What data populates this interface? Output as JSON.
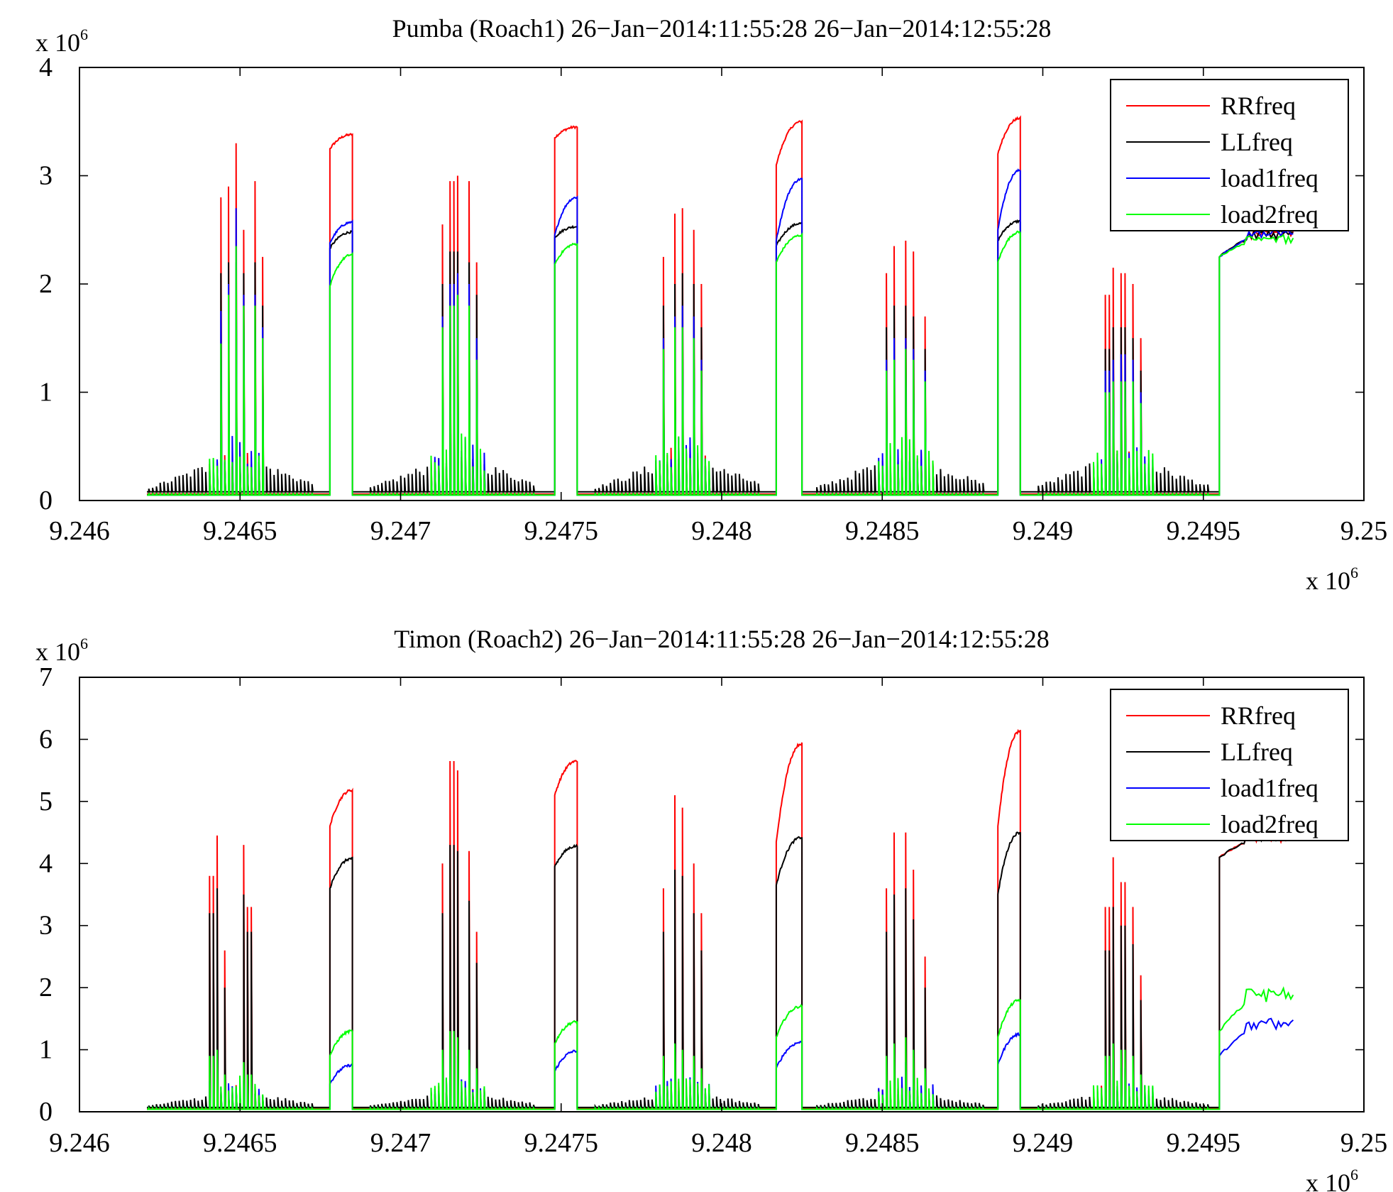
{
  "chart_data": [
    {
      "type": "line",
      "title": "Pumba (Roach1) 26−Jan−2014:11:55:28 26−Jan−2014:12:55:28",
      "xlim": [
        9246000.0,
        9250000.0
      ],
      "ylim": [
        0,
        4000000.0
      ],
      "x_exponent_label": "x 10",
      "y_exponent_label": "x 10",
      "exponent": "6",
      "x_tick_values": [
        9.246,
        9.2465,
        9.247,
        9.2475,
        9.248,
        9.2485,
        9.249,
        9.2495,
        9.25
      ],
      "x_tick_labels": [
        "9.246",
        "9.2465",
        "9.247",
        "9.2475",
        "9.248",
        "9.2485",
        "9.249",
        "9.2495",
        "9.25"
      ],
      "y_tick_values": [
        0,
        1,
        2,
        3,
        4
      ],
      "y_tick_labels": [
        "0",
        "1",
        "2",
        "3",
        "4"
      ],
      "legend": {
        "placement": "top-right",
        "entries": [
          "RRfreq",
          "LLfreq",
          "load1freq",
          "load2freq"
        ]
      },
      "grid": false,
      "series": [
        {
          "name": "RRfreq",
          "color": "#ff0000"
        },
        {
          "name": "LLfreq",
          "color": "#000000"
        },
        {
          "name": "load1freq",
          "color": "#0000ff"
        },
        {
          "name": "load2freq",
          "color": "#00ff00"
        }
      ],
      "baseline": {
        "LLfreq": 0.08,
        "RRfreq": 0.06,
        "load1freq": 0.05,
        "load2freq": 0.05
      },
      "plateaus": [
        {
          "x_start": 9.24678,
          "x_end": 9.24685,
          "RRfreq": [
            3.25,
            3.38
          ],
          "LLfreq": [
            2.33,
            2.48
          ],
          "load1freq": [
            2.38,
            2.57
          ],
          "load2freq": [
            1.98,
            2.27
          ]
        },
        {
          "x_start": 9.24748,
          "x_end": 9.24755,
          "RRfreq": [
            3.35,
            3.45
          ],
          "LLfreq": [
            2.43,
            2.53
          ],
          "load1freq": [
            2.45,
            2.8
          ],
          "load2freq": [
            2.18,
            2.37
          ]
        },
        {
          "x_start": 9.24817,
          "x_end": 9.24825,
          "RRfreq": [
            3.1,
            3.5
          ],
          "LLfreq": [
            2.35,
            2.56
          ],
          "load1freq": [
            2.4,
            2.97
          ],
          "load2freq": [
            2.2,
            2.45
          ]
        },
        {
          "x_start": 9.24886,
          "x_end": 9.24893,
          "RRfreq": [
            3.2,
            3.53
          ],
          "LLfreq": [
            2.4,
            2.58
          ],
          "load1freq": [
            2.5,
            3.05
          ],
          "load2freq": [
            2.2,
            2.48
          ]
        },
        {
          "x_start": 9.24955,
          "x_end": 9.24978,
          "RRfreq": [
            2.25,
            2.5
          ],
          "LLfreq": [
            2.25,
            2.5
          ],
          "load1freq": [
            2.25,
            2.5
          ],
          "load2freq": [
            2.25,
            2.45
          ]
        }
      ],
      "spike_clusters": [
        {
          "center": 9.24649,
          "x_start": 9.24621,
          "x_end": 9.24673,
          "peaks": [
            {
              "x": 9.24644,
              "RRfreq": 2.8,
              "LLfreq": 2.1,
              "load1freq": 1.75,
              "load2freq": 1.45
            },
            {
              "x": 9.24646,
              "RRfreq": 2.9,
              "LLfreq": 2.2,
              "load1freq": 2.0,
              "load2freq": 1.9
            },
            {
              "x": 9.24649,
              "RRfreq": 3.3,
              "LLfreq": 2.2,
              "load1freq": 2.7,
              "load2freq": 2.35
            },
            {
              "x": 9.24651,
              "RRfreq": 2.5,
              "LLfreq": 2.1,
              "load1freq": 1.9,
              "load2freq": 1.8
            },
            {
              "x": 9.24655,
              "RRfreq": 2.95,
              "LLfreq": 2.2,
              "load1freq": 1.9,
              "load2freq": 1.8
            },
            {
              "x": 9.24657,
              "RRfreq": 2.25,
              "LLfreq": 1.8,
              "load1freq": 1.6,
              "load2freq": 1.5
            }
          ]
        },
        {
          "center": 9.24718,
          "x_start": 9.2469,
          "x_end": 9.24742,
          "peaks": [
            {
              "x": 9.24713,
              "RRfreq": 2.55,
              "LLfreq": 2.0,
              "load1freq": 1.7,
              "load2freq": 1.6
            },
            {
              "x": 9.24716,
              "RRfreq": 2.95,
              "LLfreq": 2.3,
              "load1freq": 2.0,
              "load2freq": 1.8
            },
            {
              "x": 9.24718,
              "RRfreq": 3.0,
              "LLfreq": 2.3,
              "load1freq": 2.1,
              "load2freq": 1.9
            },
            {
              "x": 9.24721,
              "RRfreq": 2.95,
              "LLfreq": 2.2,
              "load1freq": 2.0,
              "load2freq": 1.8
            },
            {
              "x": 9.24724,
              "RRfreq": 2.2,
              "LLfreq": 1.9,
              "load1freq": 1.5,
              "load2freq": 1.3
            }
          ]
        },
        {
          "center": 9.24788,
          "x_start": 9.2476,
          "x_end": 9.24812,
          "peaks": [
            {
              "x": 9.24782,
              "RRfreq": 2.25,
              "LLfreq": 1.8,
              "load1freq": 1.5,
              "load2freq": 1.4
            },
            {
              "x": 9.24785,
              "RRfreq": 2.65,
              "LLfreq": 2.0,
              "load1freq": 1.7,
              "load2freq": 1.6
            },
            {
              "x": 9.24788,
              "RRfreq": 2.7,
              "LLfreq": 2.1,
              "load1freq": 1.8,
              "load2freq": 1.6
            },
            {
              "x": 9.24791,
              "RRfreq": 2.5,
              "LLfreq": 2.0,
              "load1freq": 1.7,
              "load2freq": 1.5
            },
            {
              "x": 9.24794,
              "RRfreq": 2.0,
              "LLfreq": 1.6,
              "load1freq": 1.3,
              "load2freq": 1.2
            }
          ]
        },
        {
          "center": 9.24857,
          "x_start": 9.24829,
          "x_end": 9.24882,
          "peaks": [
            {
              "x": 9.24851,
              "RRfreq": 2.1,
              "LLfreq": 1.6,
              "load1freq": 1.3,
              "load2freq": 1.2
            },
            {
              "x": 9.24854,
              "RRfreq": 2.35,
              "LLfreq": 1.8,
              "load1freq": 1.5,
              "load2freq": 1.3
            },
            {
              "x": 9.24857,
              "RRfreq": 2.4,
              "LLfreq": 1.8,
              "load1freq": 1.5,
              "load2freq": 1.4
            },
            {
              "x": 9.2486,
              "RRfreq": 2.3,
              "LLfreq": 1.7,
              "load1freq": 1.4,
              "load2freq": 1.3
            },
            {
              "x": 9.24863,
              "RRfreq": 1.7,
              "LLfreq": 1.4,
              "load1freq": 1.2,
              "load2freq": 1.1
            }
          ]
        },
        {
          "center": 9.24925,
          "x_start": 9.24898,
          "x_end": 9.24952,
          "peaks": [
            {
              "x": 9.2492,
              "RRfreq": 1.9,
              "LLfreq": 1.4,
              "load1freq": 1.2,
              "load2freq": 1.0
            },
            {
              "x": 9.24922,
              "RRfreq": 2.15,
              "LLfreq": 1.6,
              "load1freq": 1.3,
              "load2freq": 1.1
            },
            {
              "x": 9.24925,
              "RRfreq": 2.1,
              "LLfreq": 1.6,
              "load1freq": 1.35,
              "load2freq": 1.1
            },
            {
              "x": 9.24928,
              "RRfreq": 2.0,
              "LLfreq": 1.5,
              "load1freq": 1.3,
              "load2freq": 1.1
            },
            {
              "x": 9.24931,
              "RRfreq": 1.5,
              "LLfreq": 1.2,
              "load1freq": 1.0,
              "load2freq": 0.9
            }
          ]
        }
      ]
    },
    {
      "type": "line",
      "title": "Timon (Roach2) 26−Jan−2014:11:55:28 26−Jan−2014:12:55:28",
      "xlim": [
        9246000.0,
        9250000.0
      ],
      "ylim": [
        0,
        7000000.0
      ],
      "x_exponent_label": "x 10",
      "y_exponent_label": "x 10",
      "exponent": "6",
      "x_tick_values": [
        9.246,
        9.2465,
        9.247,
        9.2475,
        9.248,
        9.2485,
        9.249,
        9.2495,
        9.25
      ],
      "x_tick_labels": [
        "9.246",
        "9.2465",
        "9.247",
        "9.2475",
        "9.248",
        "9.2485",
        "9.249",
        "9.2495",
        "9.25"
      ],
      "y_tick_values": [
        0,
        1,
        2,
        3,
        4,
        5,
        6,
        7
      ],
      "y_tick_labels": [
        "0",
        "1",
        "2",
        "3",
        "4",
        "5",
        "6",
        "7"
      ],
      "legend": {
        "placement": "top-right",
        "entries": [
          "RRfreq",
          "LLfreq",
          "load1freq",
          "load2freq"
        ]
      },
      "grid": false,
      "series": [
        {
          "name": "RRfreq",
          "color": "#ff0000"
        },
        {
          "name": "LLfreq",
          "color": "#000000"
        },
        {
          "name": "load1freq",
          "color": "#0000ff"
        },
        {
          "name": "load2freq",
          "color": "#00ff00"
        }
      ],
      "baseline": {
        "LLfreq": 0.07,
        "RRfreq": 0.05,
        "load1freq": 0.04,
        "load2freq": 0.04
      },
      "plateaus": [
        {
          "x_start": 9.24678,
          "x_end": 9.24685,
          "RRfreq": [
            4.6,
            5.18
          ],
          "LLfreq": [
            3.6,
            4.08
          ],
          "load1freq": [
            0.45,
            0.75
          ],
          "load2freq": [
            0.9,
            1.3
          ]
        },
        {
          "x_start": 9.24748,
          "x_end": 9.24755,
          "RRfreq": [
            5.1,
            5.65
          ],
          "LLfreq": [
            3.95,
            4.28
          ],
          "load1freq": [
            0.65,
            0.98
          ],
          "load2freq": [
            1.1,
            1.45
          ]
        },
        {
          "x_start": 9.24817,
          "x_end": 9.24825,
          "RRfreq": [
            4.35,
            5.93
          ],
          "LLfreq": [
            3.65,
            4.42
          ],
          "load1freq": [
            0.7,
            1.12
          ],
          "load2freq": [
            1.2,
            1.7
          ]
        },
        {
          "x_start": 9.24886,
          "x_end": 9.24893,
          "RRfreq": [
            4.6,
            6.13
          ],
          "LLfreq": [
            3.5,
            4.5
          ],
          "load1freq": [
            0.75,
            1.25
          ],
          "load2freq": [
            1.2,
            1.8
          ]
        },
        {
          "x_start": 9.24955,
          "x_end": 9.24978,
          "RRfreq": [
            4.1,
            4.5
          ],
          "LLfreq": [
            4.1,
            4.5
          ],
          "load1freq": [
            0.9,
            1.5
          ],
          "load2freq": [
            1.3,
            2.0
          ]
        }
      ],
      "spike_clusters": [
        {
          "center": 9.24649,
          "x_start": 9.24621,
          "x_end": 9.24673,
          "peaks": [
            {
              "x": 9.24641,
              "RRfreq": 3.8,
              "LLfreq": 3.2,
              "load1freq": 0.5,
              "load2freq": 0.9
            },
            {
              "x": 9.24643,
              "RRfreq": 4.45,
              "LLfreq": 3.6,
              "load1freq": 0.6,
              "load2freq": 1.0
            },
            {
              "x": 9.24645,
              "RRfreq": 2.6,
              "LLfreq": 2.0,
              "load1freq": 0.3,
              "load2freq": 0.6
            },
            {
              "x": 9.24651,
              "RRfreq": 4.3,
              "LLfreq": 3.5,
              "load1freq": 0.5,
              "load2freq": 0.8
            },
            {
              "x": 9.24653,
              "RRfreq": 3.3,
              "LLfreq": 2.9,
              "load1freq": 0.4,
              "load2freq": 0.6
            }
          ]
        },
        {
          "center": 9.24718,
          "x_start": 9.2469,
          "x_end": 9.24742,
          "peaks": [
            {
              "x": 9.24713,
              "RRfreq": 4.0,
              "LLfreq": 3.2,
              "load1freq": 0.7,
              "load2freq": 1.0
            },
            {
              "x": 9.24716,
              "RRfreq": 5.65,
              "LLfreq": 4.3,
              "load1freq": 0.9,
              "load2freq": 1.3
            },
            {
              "x": 9.24718,
              "RRfreq": 5.5,
              "LLfreq": 4.2,
              "load1freq": 0.9,
              "load2freq": 1.2
            },
            {
              "x": 9.24721,
              "RRfreq": 4.2,
              "LLfreq": 3.4,
              "load1freq": 0.8,
              "load2freq": 1.0
            },
            {
              "x": 9.24724,
              "RRfreq": 2.9,
              "LLfreq": 2.4,
              "load1freq": 0.6,
              "load2freq": 0.7
            }
          ]
        },
        {
          "center": 9.24788,
          "x_start": 9.2476,
          "x_end": 9.24812,
          "peaks": [
            {
              "x": 9.24782,
              "RRfreq": 3.6,
              "LLfreq": 2.9,
              "load1freq": 0.7,
              "load2freq": 0.9
            },
            {
              "x": 9.24785,
              "RRfreq": 5.1,
              "LLfreq": 3.9,
              "load1freq": 0.8,
              "load2freq": 1.1
            },
            {
              "x": 9.24788,
              "RRfreq": 4.9,
              "LLfreq": 3.8,
              "load1freq": 0.8,
              "load2freq": 1.0
            },
            {
              "x": 9.24791,
              "RRfreq": 4.0,
              "LLfreq": 3.2,
              "load1freq": 0.7,
              "load2freq": 0.9
            },
            {
              "x": 9.24794,
              "RRfreq": 3.2,
              "LLfreq": 2.6,
              "load1freq": 0.5,
              "load2freq": 0.7
            }
          ]
        },
        {
          "center": 9.24857,
          "x_start": 9.24829,
          "x_end": 9.24882,
          "peaks": [
            {
              "x": 9.24851,
              "RRfreq": 3.6,
              "LLfreq": 2.9,
              "load1freq": 0.6,
              "load2freq": 0.9
            },
            {
              "x": 9.24854,
              "RRfreq": 4.5,
              "LLfreq": 3.5,
              "load1freq": 0.7,
              "load2freq": 1.1
            },
            {
              "x": 9.24857,
              "RRfreq": 4.5,
              "LLfreq": 3.6,
              "load1freq": 0.8,
              "load2freq": 1.2
            },
            {
              "x": 9.2486,
              "RRfreq": 3.9,
              "LLfreq": 3.1,
              "load1freq": 0.6,
              "load2freq": 1.0
            },
            {
              "x": 9.24863,
              "RRfreq": 2.5,
              "LLfreq": 2.0,
              "load1freq": 0.5,
              "load2freq": 0.7
            }
          ]
        },
        {
          "center": 9.24925,
          "x_start": 9.24898,
          "x_end": 9.24952,
          "peaks": [
            {
              "x": 9.2492,
              "RRfreq": 3.3,
              "LLfreq": 2.6,
              "load1freq": 0.6,
              "load2freq": 0.9
            },
            {
              "x": 9.24922,
              "RRfreq": 4.1,
              "LLfreq": 3.3,
              "load1freq": 0.8,
              "load2freq": 1.1
            },
            {
              "x": 9.24925,
              "RRfreq": 3.7,
              "LLfreq": 3.0,
              "load1freq": 0.7,
              "load2freq": 1.0
            },
            {
              "x": 9.24928,
              "RRfreq": 3.3,
              "LLfreq": 2.7,
              "load1freq": 0.7,
              "load2freq": 0.9
            },
            {
              "x": 9.24931,
              "RRfreq": 2.2,
              "LLfreq": 1.8,
              "load1freq": 0.5,
              "load2freq": 0.6
            }
          ]
        }
      ]
    }
  ]
}
